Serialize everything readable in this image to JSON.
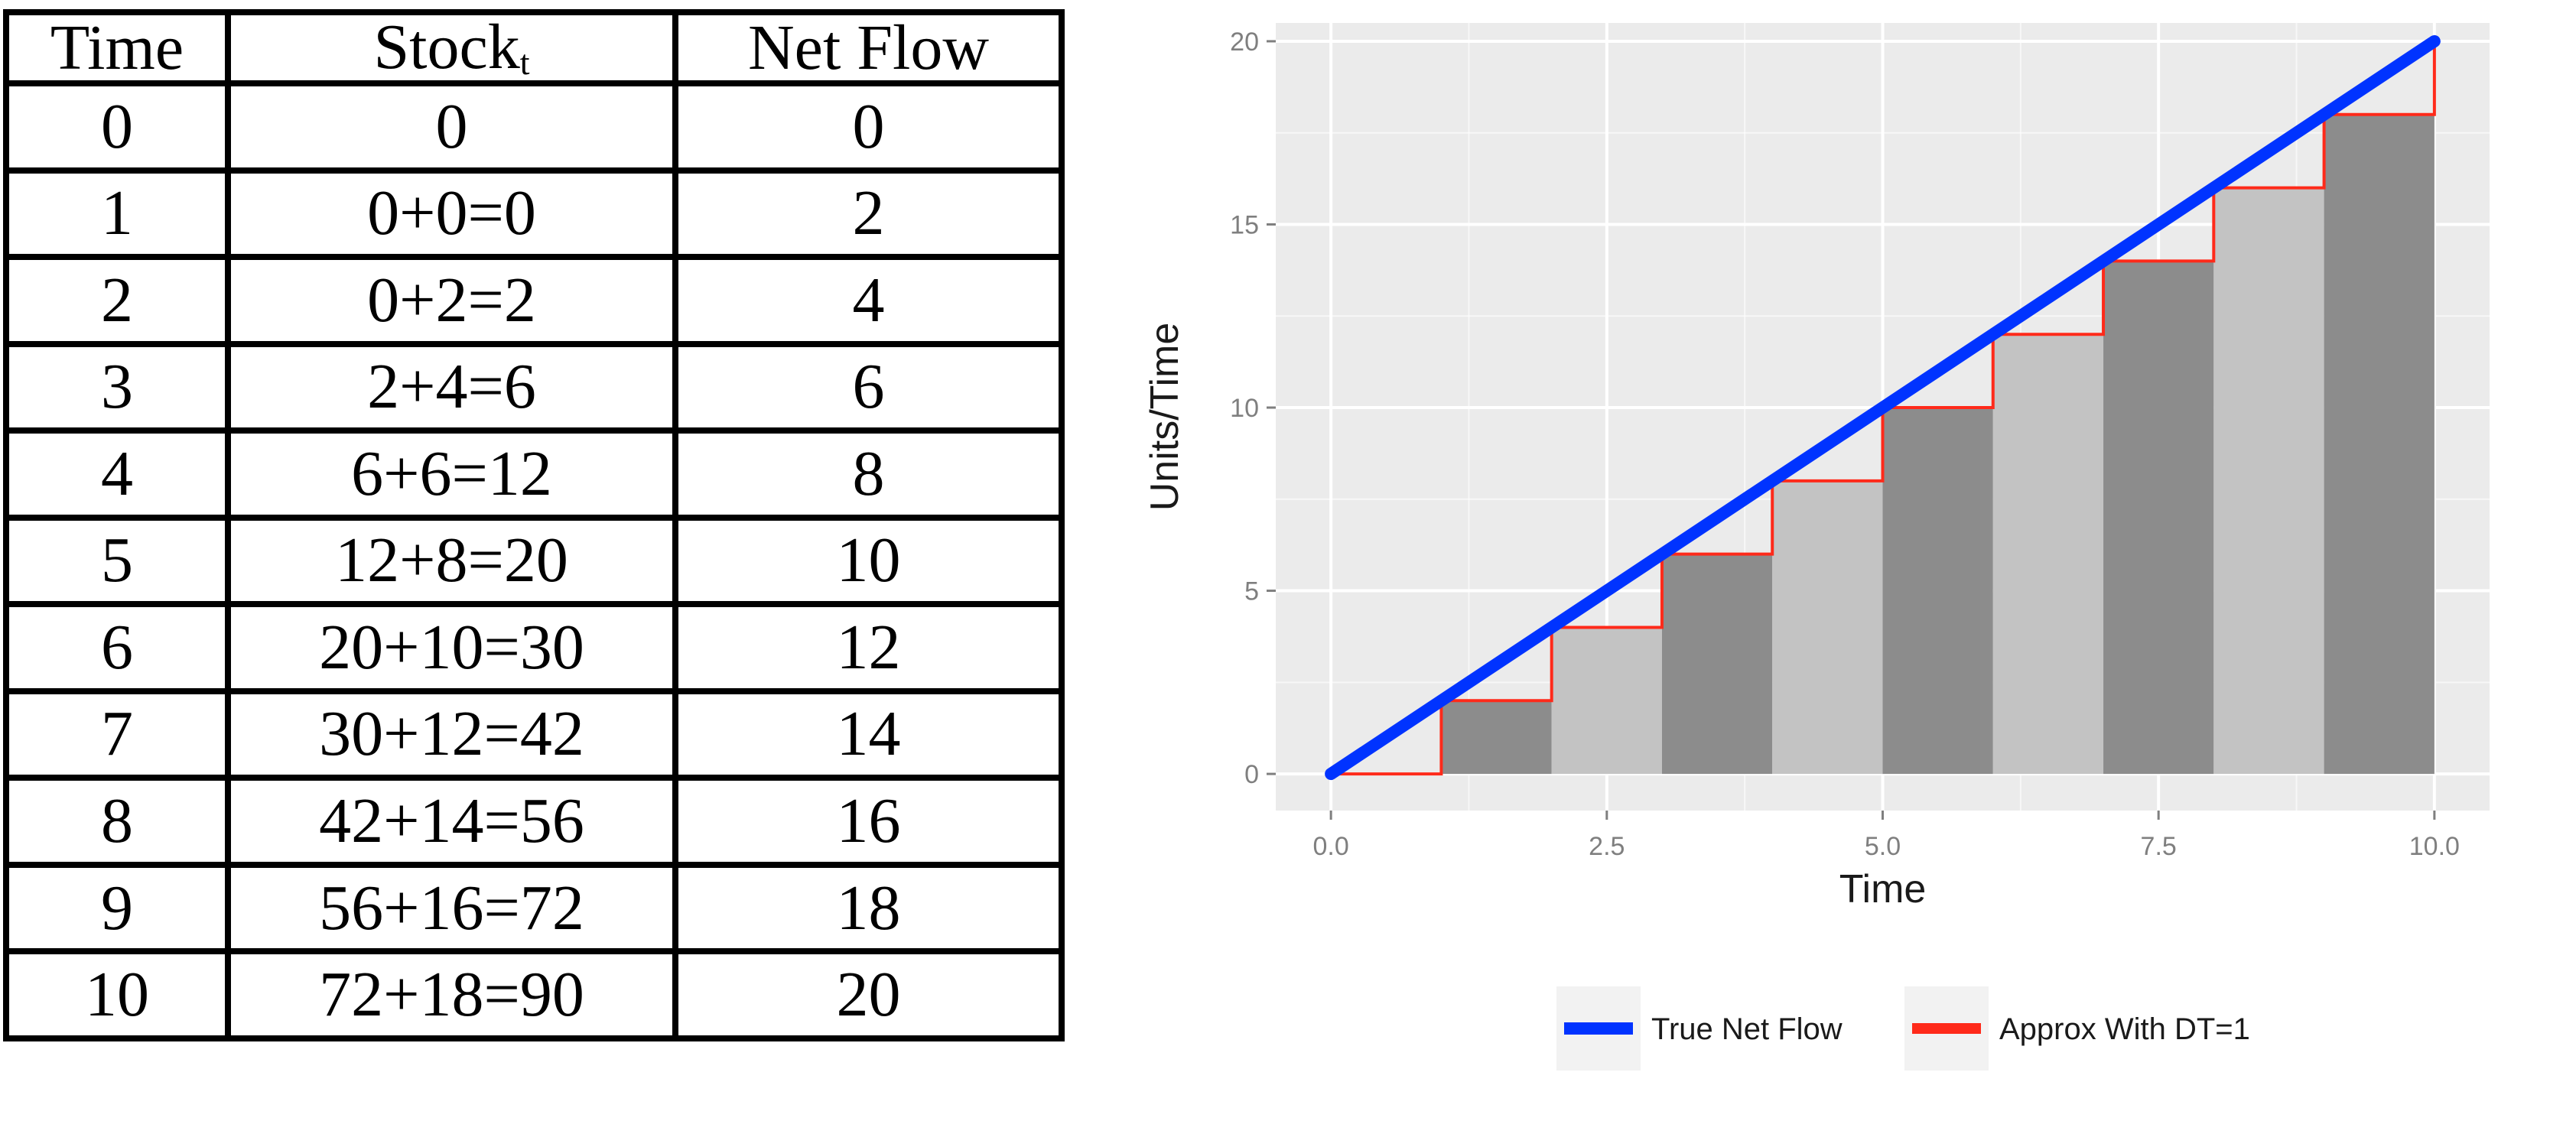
{
  "table": {
    "headers": {
      "time": "Time",
      "stock": "Stock",
      "stock_sub": "t",
      "net_flow": "Net Flow"
    },
    "rows": [
      {
        "time": "0",
        "stock": "0",
        "net_flow": "0"
      },
      {
        "time": "1",
        "stock": "0+0=0",
        "net_flow": "2"
      },
      {
        "time": "2",
        "stock": "0+2=2",
        "net_flow": "4"
      },
      {
        "time": "3",
        "stock": "2+4=6",
        "net_flow": "6"
      },
      {
        "time": "4",
        "stock": "6+6=12",
        "net_flow": "8"
      },
      {
        "time": "5",
        "stock": "12+8=20",
        "net_flow": "10"
      },
      {
        "time": "6",
        "stock": "20+10=30",
        "net_flow": "12"
      },
      {
        "time": "7",
        "stock": "30+12=42",
        "net_flow": "14"
      },
      {
        "time": "8",
        "stock": "42+14=56",
        "net_flow": "16"
      },
      {
        "time": "9",
        "stock": "56+16=72",
        "net_flow": "18"
      },
      {
        "time": "10",
        "stock": "72+18=90",
        "net_flow": "20"
      }
    ]
  },
  "chart_data": {
    "type": "line",
    "xlabel": "Time",
    "ylabel": "Units/Time",
    "xlim": [
      -0.5,
      10.5
    ],
    "ylim": [
      -1,
      20.5
    ],
    "x_ticks": [
      0,
      2.5,
      5,
      7.5,
      10
    ],
    "x_tick_labels": [
      "0.0",
      "2.5",
      "5.0",
      "7.5",
      "10.0"
    ],
    "y_ticks": [
      0,
      5,
      10,
      15,
      20
    ],
    "y_tick_labels": [
      "0",
      "5",
      "10",
      "15",
      "20"
    ],
    "grid": true,
    "legend_position": "bottom",
    "area_bars": [
      {
        "x0": 1,
        "x1": 2,
        "value": 2,
        "shade": "dark"
      },
      {
        "x0": 2,
        "x1": 3,
        "value": 4,
        "shade": "light"
      },
      {
        "x0": 3,
        "x1": 4,
        "value": 6,
        "shade": "dark"
      },
      {
        "x0": 4,
        "x1": 5,
        "value": 8,
        "shade": "light"
      },
      {
        "x0": 5,
        "x1": 6,
        "value": 10,
        "shade": "dark"
      },
      {
        "x0": 6,
        "x1": 7,
        "value": 12,
        "shade": "light"
      },
      {
        "x0": 7,
        "x1": 8,
        "value": 14,
        "shade": "dark"
      },
      {
        "x0": 8,
        "x1": 9,
        "value": 16,
        "shade": "light"
      },
      {
        "x0": 9,
        "x1": 10,
        "value": 18,
        "shade": "dark"
      }
    ],
    "series": [
      {
        "name": "True Net Flow",
        "color": "#0033ff",
        "x": [
          0,
          10
        ],
        "y": [
          0,
          20
        ]
      },
      {
        "name": "Approx With DT=1",
        "color": "#ff2a1a",
        "step": true,
        "x": [
          0,
          1,
          2,
          3,
          4,
          5,
          6,
          7,
          8,
          9,
          10
        ],
        "y": [
          0,
          2,
          4,
          6,
          8,
          10,
          12,
          14,
          16,
          18,
          20
        ]
      }
    ],
    "colors": {
      "panel_bg": "#ebebeb",
      "grid": "#ffffff",
      "bar_dark": "#8c8c8c",
      "bar_light": "#c3c3c3",
      "legend_key_bg": "#f2f2f2"
    }
  }
}
